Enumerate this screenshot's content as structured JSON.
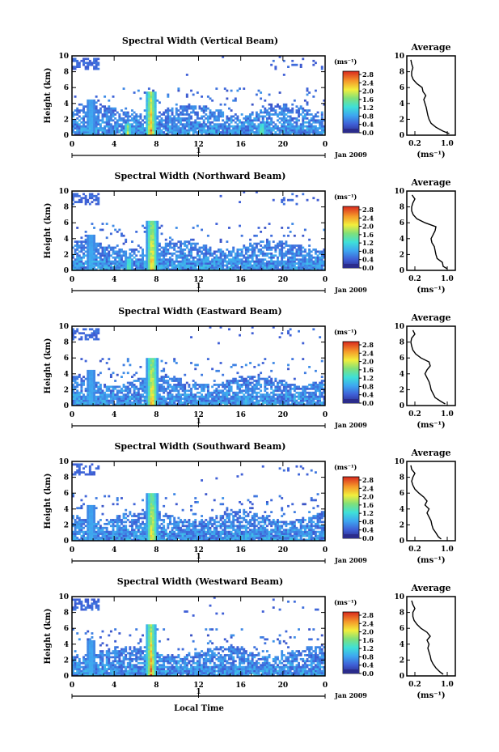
{
  "chart_data": [
    {
      "type": "heatmap",
      "title": "Spectral Width (Vertical Beam)",
      "ylabel": "Height (km)",
      "xlabel": "",
      "x_ticks": [
        "0",
        "4",
        "8",
        "12",
        "16",
        "20",
        "0"
      ],
      "y_ticks": [
        "0",
        "2",
        "4",
        "6",
        "8",
        "10"
      ],
      "xlim": [
        0,
        24
      ],
      "ylim": [
        0,
        10
      ],
      "date_label": "Jan 2009",
      "day_marker": "1",
      "colorbar": {
        "unit": "(ms⁻¹)",
        "ticks": [
          "2.8",
          "2.4",
          "2.0",
          "1.6",
          "1.2",
          "0.8",
          "0.4",
          "0.0"
        ]
      },
      "enhancements": [
        {
          "hour": 7.5,
          "top_km": 5.5,
          "peak": 2.8
        },
        {
          "hour": 5.3,
          "top_km": 1.6,
          "peak": 2.2
        },
        {
          "hour": 18.0,
          "top_km": 1.4,
          "peak": 2.0
        },
        {
          "hour": 1.8,
          "top_km": 4.5,
          "peak": 1.0
        }
      ],
      "average": {
        "title": "Average",
        "xlabel": "(ms⁻¹)",
        "x_ticks": [
          "0.2",
          "1.0"
        ],
        "xlim": [
          0,
          1.2
        ],
        "profile": [
          {
            "h": 0.2,
            "v": 1.05
          },
          {
            "h": 0.5,
            "v": 0.9
          },
          {
            "h": 1.0,
            "v": 0.72
          },
          {
            "h": 1.5,
            "v": 0.6
          },
          {
            "h": 2.0,
            "v": 0.55
          },
          {
            "h": 2.5,
            "v": 0.52
          },
          {
            "h": 3.0,
            "v": 0.5
          },
          {
            "h": 3.5,
            "v": 0.48
          },
          {
            "h": 4.0,
            "v": 0.45
          },
          {
            "h": 4.5,
            "v": 0.42
          },
          {
            "h": 5.0,
            "v": 0.47
          },
          {
            "h": 5.5,
            "v": 0.4
          },
          {
            "h": 6.0,
            "v": 0.38
          },
          {
            "h": 6.5,
            "v": 0.25
          },
          {
            "h": 7.0,
            "v": 0.16
          },
          {
            "h": 7.5,
            "v": 0.12
          },
          {
            "h": 8.0,
            "v": 0.12
          },
          {
            "h": 8.5,
            "v": 0.15
          },
          {
            "h": 9.0,
            "v": 0.12
          },
          {
            "h": 9.5,
            "v": 0.1
          }
        ]
      }
    },
    {
      "type": "heatmap",
      "title": "Spectral Width (Northward Beam)",
      "ylabel": "Height (km)",
      "xlabel": "",
      "x_ticks": [
        "0",
        "4",
        "8",
        "12",
        "16",
        "20",
        "0"
      ],
      "y_ticks": [
        "0",
        "2",
        "4",
        "6",
        "8",
        "10"
      ],
      "xlim": [
        0,
        24
      ],
      "ylim": [
        0,
        10
      ],
      "date_label": "Jan 2009",
      "day_marker": "1",
      "colorbar": {
        "unit": "(ms⁻¹)",
        "ticks": [
          "2.8",
          "2.4",
          "2.0",
          "1.6",
          "1.2",
          "0.8",
          "0.4",
          "0.0"
        ]
      },
      "enhancements": [
        {
          "hour": 7.6,
          "top_km": 6.2,
          "peak": 2.8
        },
        {
          "hour": 5.4,
          "top_km": 1.5,
          "peak": 2.0
        },
        {
          "hour": 1.8,
          "top_km": 4.5,
          "peak": 1.0
        }
      ],
      "average": {
        "title": "Average",
        "xlabel": "(ms⁻¹)",
        "x_ticks": [
          "0.2",
          "1.0"
        ],
        "xlim": [
          0,
          1.2
        ],
        "profile": [
          {
            "h": 0.2,
            "v": 1.0
          },
          {
            "h": 0.5,
            "v": 0.9
          },
          {
            "h": 1.0,
            "v": 0.88
          },
          {
            "h": 1.5,
            "v": 0.75
          },
          {
            "h": 2.0,
            "v": 0.72
          },
          {
            "h": 2.5,
            "v": 0.7
          },
          {
            "h": 3.0,
            "v": 0.68
          },
          {
            "h": 3.5,
            "v": 0.62
          },
          {
            "h": 4.0,
            "v": 0.6
          },
          {
            "h": 4.5,
            "v": 0.65
          },
          {
            "h": 5.0,
            "v": 0.7
          },
          {
            "h": 5.5,
            "v": 0.72
          },
          {
            "h": 6.0,
            "v": 0.45
          },
          {
            "h": 6.5,
            "v": 0.25
          },
          {
            "h": 7.0,
            "v": 0.16
          },
          {
            "h": 7.5,
            "v": 0.12
          },
          {
            "h": 8.0,
            "v": 0.12
          },
          {
            "h": 8.5,
            "v": 0.15
          },
          {
            "h": 9.0,
            "v": 0.2
          },
          {
            "h": 9.5,
            "v": 0.13
          }
        ]
      }
    },
    {
      "type": "heatmap",
      "title": "Spectral Width (Eastward Beam)",
      "ylabel": "Height (km)",
      "xlabel": "",
      "x_ticks": [
        "0",
        "4",
        "8",
        "12",
        "16",
        "20",
        "0"
      ],
      "y_ticks": [
        "0",
        "2",
        "4",
        "6",
        "8",
        "10"
      ],
      "xlim": [
        0,
        24
      ],
      "ylim": [
        0,
        10
      ],
      "date_label": "Jan 2009",
      "day_marker": "1",
      "colorbar": {
        "unit": "(ms⁻¹)",
        "ticks": [
          "2.8",
          "2.4",
          "2.0",
          "1.6",
          "1.2",
          "0.8",
          "0.4",
          "0.0"
        ]
      },
      "enhancements": [
        {
          "hour": 7.6,
          "top_km": 6.0,
          "peak": 2.8
        },
        {
          "hour": 1.8,
          "top_km": 4.5,
          "peak": 1.0
        }
      ],
      "average": {
        "title": "Average",
        "xlabel": "(ms⁻¹)",
        "x_ticks": [
          "0.2",
          "1.0"
        ],
        "xlim": [
          0,
          1.2
        ],
        "profile": [
          {
            "h": 0.2,
            "v": 0.95
          },
          {
            "h": 0.5,
            "v": 0.85
          },
          {
            "h": 1.0,
            "v": 0.7
          },
          {
            "h": 1.5,
            "v": 0.65
          },
          {
            "h": 2.0,
            "v": 0.6
          },
          {
            "h": 2.5,
            "v": 0.58
          },
          {
            "h": 3.0,
            "v": 0.55
          },
          {
            "h": 3.5,
            "v": 0.5
          },
          {
            "h": 4.0,
            "v": 0.45
          },
          {
            "h": 4.5,
            "v": 0.5
          },
          {
            "h": 5.0,
            "v": 0.58
          },
          {
            "h": 5.5,
            "v": 0.55
          },
          {
            "h": 6.0,
            "v": 0.35
          },
          {
            "h": 6.5,
            "v": 0.22
          },
          {
            "h": 7.0,
            "v": 0.15
          },
          {
            "h": 7.5,
            "v": 0.12
          },
          {
            "h": 8.0,
            "v": 0.1
          },
          {
            "h": 8.5,
            "v": 0.12
          },
          {
            "h": 9.0,
            "v": 0.2
          },
          {
            "h": 9.5,
            "v": 0.15
          }
        ]
      }
    },
    {
      "type": "heatmap",
      "title": "Spectral Width (Southward Beam)",
      "ylabel": "Height (km)",
      "xlabel": "",
      "x_ticks": [
        "0",
        "4",
        "8",
        "12",
        "16",
        "20",
        "0"
      ],
      "y_ticks": [
        "0",
        "2",
        "4",
        "6",
        "8",
        "10"
      ],
      "xlim": [
        0,
        24
      ],
      "ylim": [
        0,
        10
      ],
      "date_label": "Jan 2009",
      "day_marker": "1",
      "colorbar": {
        "unit": "(ms⁻¹)",
        "ticks": [
          "2.8",
          "2.4",
          "2.0",
          "1.6",
          "1.2",
          "0.8",
          "0.4",
          "0.0"
        ]
      },
      "enhancements": [
        {
          "hour": 7.6,
          "top_km": 6.0,
          "peak": 2.6
        },
        {
          "hour": 1.8,
          "top_km": 4.5,
          "peak": 1.0
        }
      ],
      "average": {
        "title": "Average",
        "xlabel": "(ms⁻¹)",
        "x_ticks": [
          "0.2",
          "1.0"
        ],
        "xlim": [
          0,
          1.2
        ],
        "profile": [
          {
            "h": 0.2,
            "v": 0.85
          },
          {
            "h": 0.5,
            "v": 0.78
          },
          {
            "h": 1.0,
            "v": 0.72
          },
          {
            "h": 1.5,
            "v": 0.65
          },
          {
            "h": 2.0,
            "v": 0.62
          },
          {
            "h": 2.5,
            "v": 0.6
          },
          {
            "h": 3.0,
            "v": 0.55
          },
          {
            "h": 3.5,
            "v": 0.5
          },
          {
            "h": 4.0,
            "v": 0.55
          },
          {
            "h": 4.5,
            "v": 0.45
          },
          {
            "h": 5.0,
            "v": 0.5
          },
          {
            "h": 5.5,
            "v": 0.42
          },
          {
            "h": 6.0,
            "v": 0.3
          },
          {
            "h": 6.5,
            "v": 0.2
          },
          {
            "h": 7.0,
            "v": 0.15
          },
          {
            "h": 7.5,
            "v": 0.12
          },
          {
            "h": 8.0,
            "v": 0.15
          },
          {
            "h": 8.5,
            "v": 0.2
          },
          {
            "h": 9.0,
            "v": 0.12
          },
          {
            "h": 9.5,
            "v": 0.1
          }
        ]
      }
    },
    {
      "type": "heatmap",
      "title": "Spectral Width (Westward Beam)",
      "ylabel": "Height (km)",
      "xlabel": "Local Time",
      "x_ticks": [
        "0",
        "4",
        "8",
        "12",
        "16",
        "20",
        "0"
      ],
      "y_ticks": [
        "0",
        "2",
        "4",
        "6",
        "8",
        "10"
      ],
      "xlim": [
        0,
        24
      ],
      "ylim": [
        0,
        10
      ],
      "date_label": "Jan 2009",
      "day_marker": "1",
      "colorbar": {
        "unit": "(ms⁻¹)",
        "ticks": [
          "2.8",
          "2.4",
          "2.0",
          "1.6",
          "1.2",
          "0.8",
          "0.4",
          "0.0"
        ]
      },
      "enhancements": [
        {
          "hour": 7.5,
          "top_km": 6.5,
          "peak": 2.8
        },
        {
          "hour": 1.8,
          "top_km": 4.5,
          "peak": 1.0
        }
      ],
      "average": {
        "title": "Average",
        "xlabel": "(ms⁻¹)",
        "x_ticks": [
          "0.2",
          "1.0"
        ],
        "xlim": [
          0,
          1.2
        ],
        "profile": [
          {
            "h": 0.2,
            "v": 0.9
          },
          {
            "h": 0.5,
            "v": 0.82
          },
          {
            "h": 1.0,
            "v": 0.72
          },
          {
            "h": 1.5,
            "v": 0.65
          },
          {
            "h": 2.0,
            "v": 0.6
          },
          {
            "h": 2.5,
            "v": 0.58
          },
          {
            "h": 3.0,
            "v": 0.55
          },
          {
            "h": 3.5,
            "v": 0.52
          },
          {
            "h": 4.0,
            "v": 0.55
          },
          {
            "h": 4.5,
            "v": 0.5
          },
          {
            "h": 5.0,
            "v": 0.58
          },
          {
            "h": 5.5,
            "v": 0.5
          },
          {
            "h": 6.0,
            "v": 0.35
          },
          {
            "h": 6.5,
            "v": 0.25
          },
          {
            "h": 7.0,
            "v": 0.18
          },
          {
            "h": 7.5,
            "v": 0.15
          },
          {
            "h": 8.0,
            "v": 0.15
          },
          {
            "h": 8.5,
            "v": 0.2
          },
          {
            "h": 9.0,
            "v": 0.15
          },
          {
            "h": 9.5,
            "v": 0.12
          }
        ]
      }
    }
  ]
}
